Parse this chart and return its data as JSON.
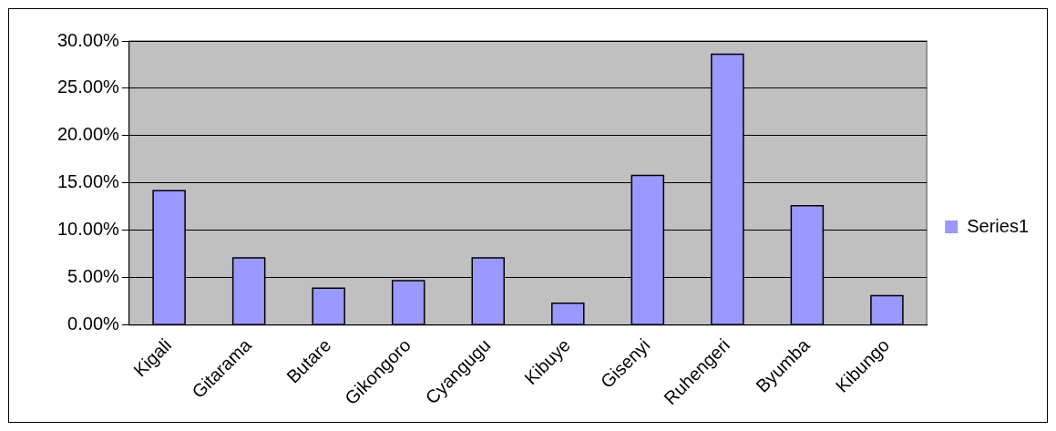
{
  "chart_data": {
    "type": "bar",
    "categories": [
      "Kigali",
      "Gitarama",
      "Butare",
      "Gikongoro",
      "Cyangugu",
      "Kibuye",
      "Gisenyi",
      "Ruhengeri",
      "Byumba",
      "Kibungo"
    ],
    "series": [
      {
        "name": "Series1",
        "color": "#9999ff",
        "values": [
          14.2,
          7.1,
          3.9,
          4.7,
          7.1,
          2.3,
          15.8,
          28.6,
          12.6,
          3.1
        ]
      }
    ],
    "ylim": [
      0,
      30
    ],
    "yticks": [
      {
        "value": 0,
        "label": "0.00%"
      },
      {
        "value": 5,
        "label": "5.00%"
      },
      {
        "value": 10,
        "label": "10.00%"
      },
      {
        "value": 15,
        "label": "15.00%"
      },
      {
        "value": 20,
        "label": "20.00%"
      },
      {
        "value": 25,
        "label": "25.00%"
      },
      {
        "value": 30,
        "label": "30.00%"
      }
    ],
    "grid": "y",
    "legend": "right"
  }
}
